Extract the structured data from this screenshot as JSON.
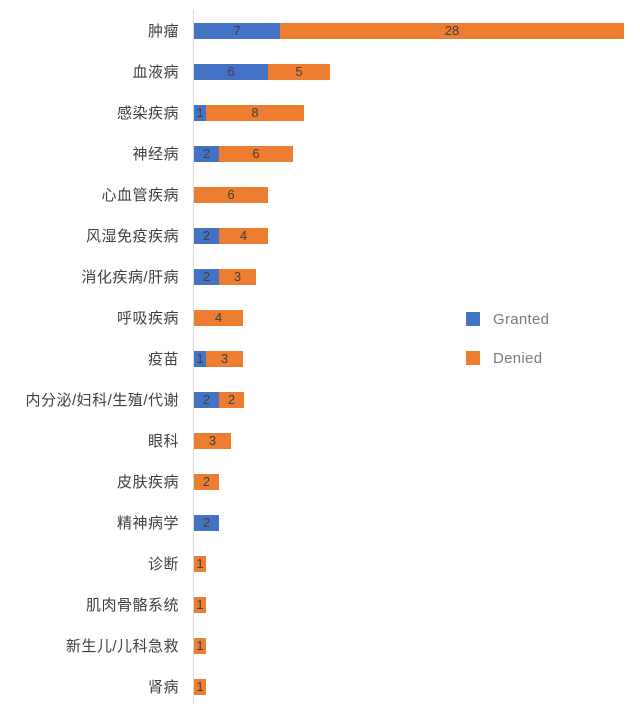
{
  "chart_data": {
    "type": "bar",
    "orientation": "horizontal",
    "stacked": true,
    "title": "",
    "xlabel": "",
    "ylabel": "",
    "grid": false,
    "legend_position": "right",
    "value_labels_shown": true,
    "categories": [
      "肿瘤",
      "血液病",
      "感染疾病",
      "神经病",
      "心血管疾病",
      "风湿免疫疾病",
      "消化疾病/肝病",
      "呼吸疾病",
      "疫苗",
      "内分泌/妇科/生殖/代谢",
      "眼科",
      "皮肤疾病",
      "精神病学",
      "诊断",
      "肌肉骨骼系统",
      "新生儿/儿科急救",
      "肾病"
    ],
    "series": [
      {
        "name": "Granted",
        "color": "#4472C4",
        "values": [
          7,
          6,
          1,
          2,
          0,
          2,
          2,
          0,
          1,
          2,
          0,
          0,
          2,
          0,
          0,
          0,
          0
        ]
      },
      {
        "name": "Denied",
        "color": "#ED7D31",
        "values": [
          28,
          5,
          8,
          6,
          6,
          4,
          3,
          4,
          3,
          2,
          3,
          2,
          0,
          1,
          1,
          1,
          1
        ]
      }
    ],
    "colors": {
      "granted": "#4472C4",
      "denied": "#ED7D31",
      "axis_line": "#D9D9D9",
      "category_label": "#404040",
      "value_label": "#404040",
      "legend_text": "#7A7A7A",
      "background": "#FFFFFF"
    }
  }
}
